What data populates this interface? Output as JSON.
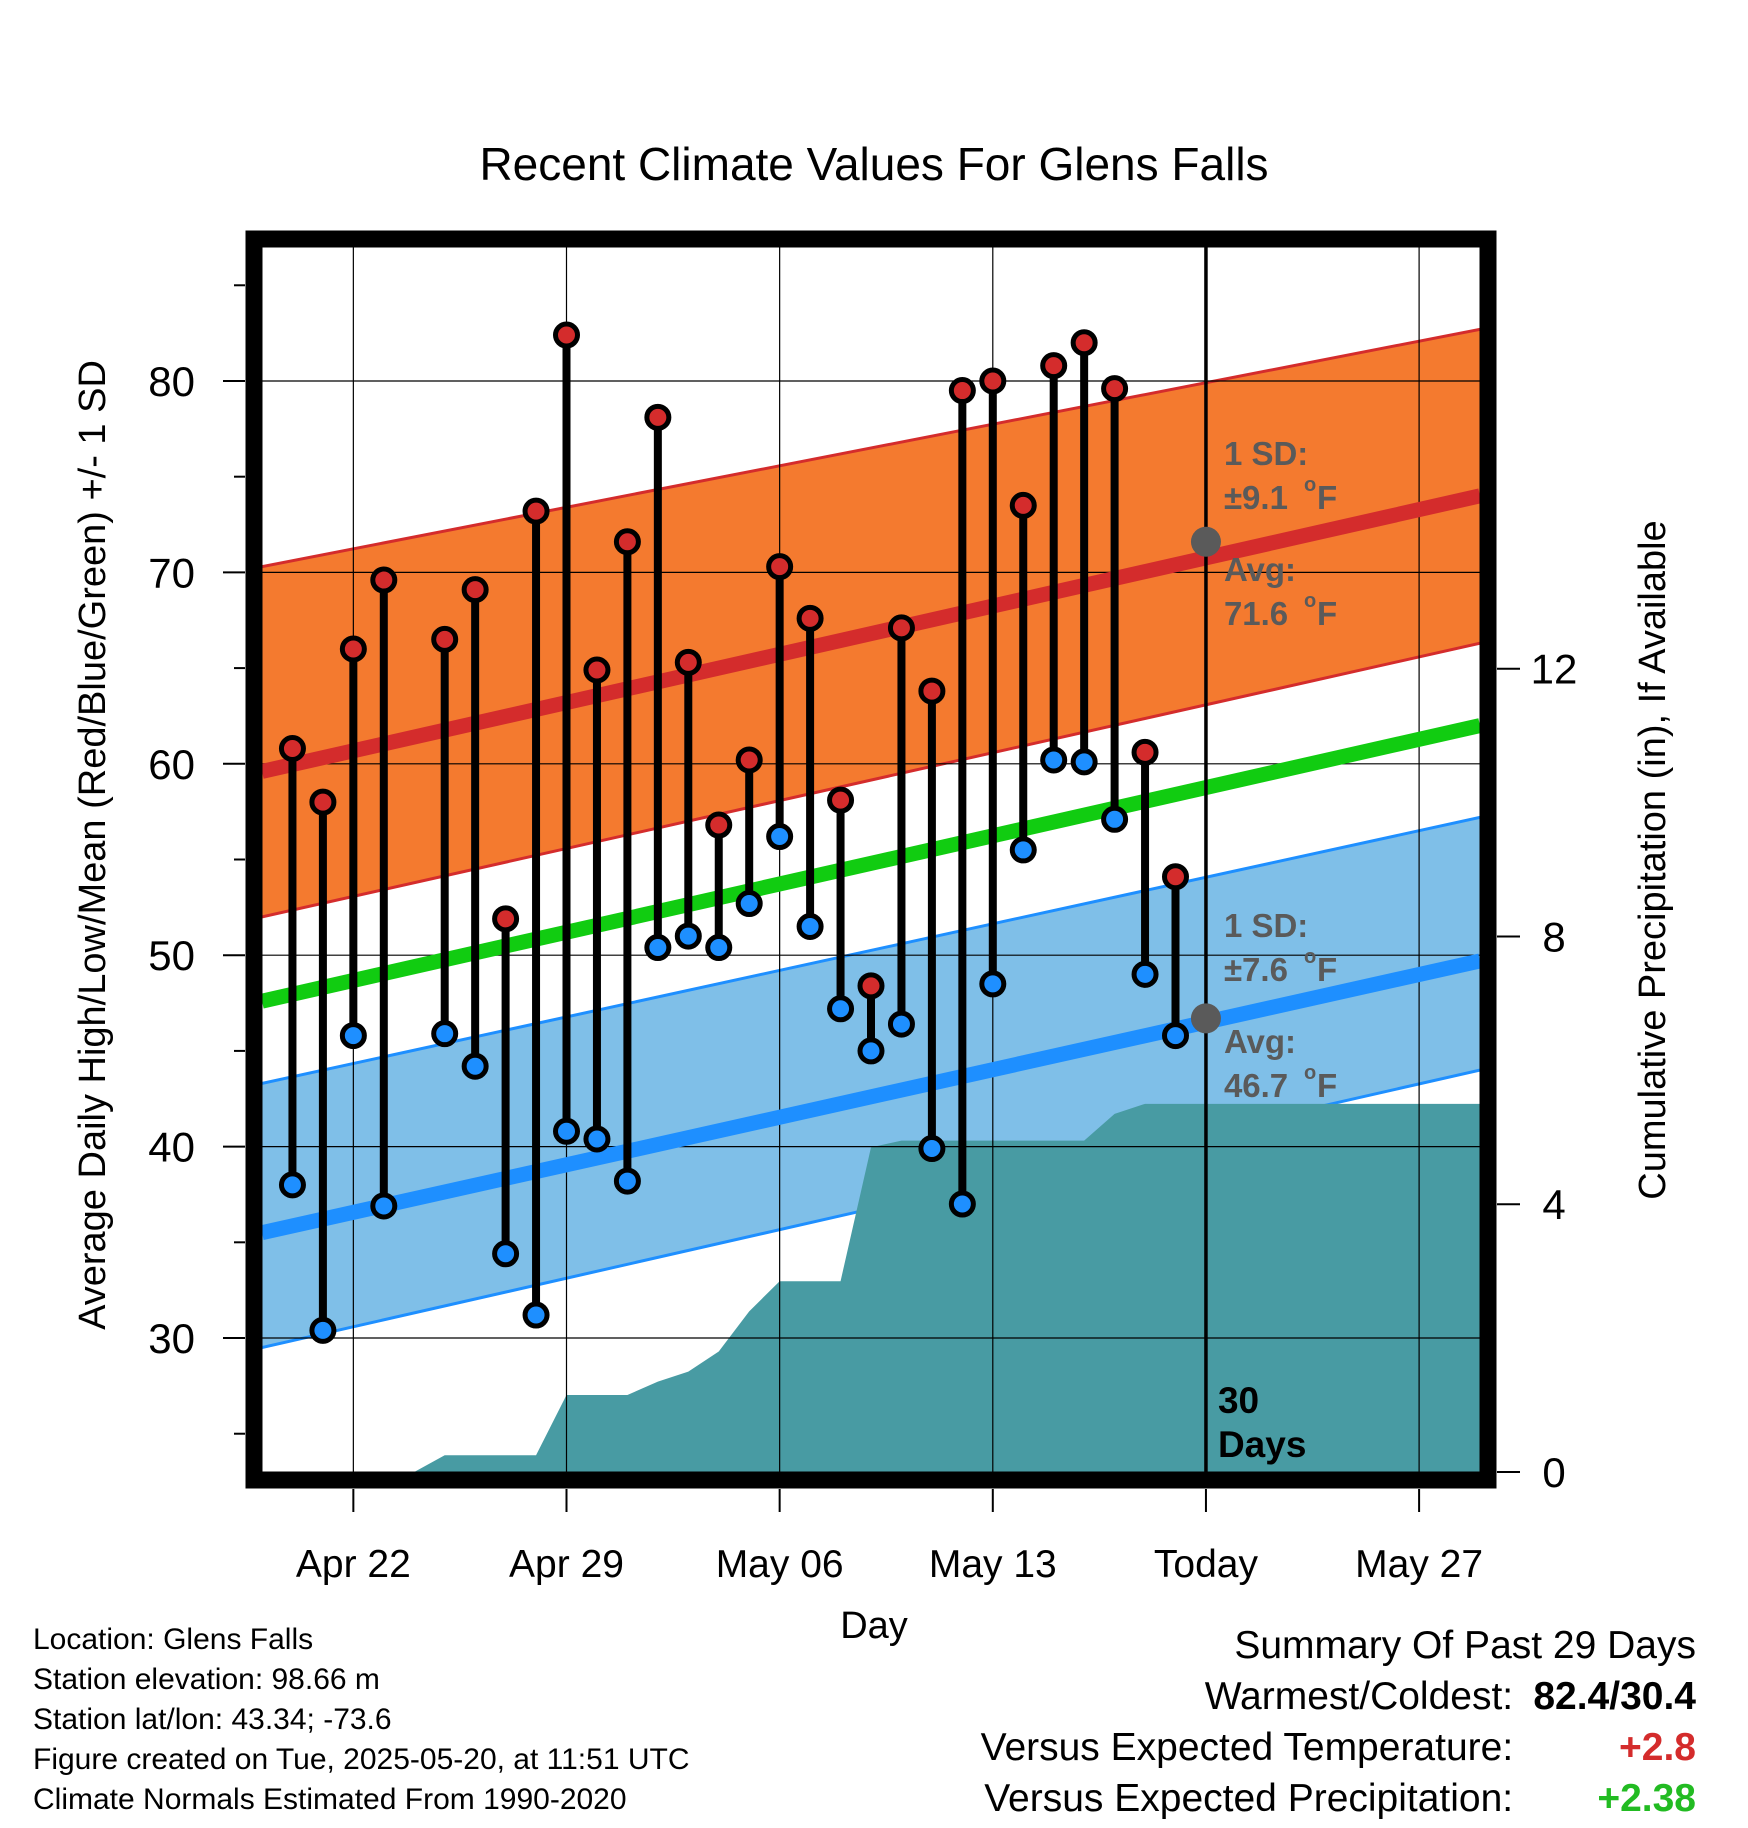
{
  "chart_data": {
    "type": "line",
    "title": "Recent Climate Values For Glens Falls",
    "xlabel": "Day",
    "ylabel": "Average Daily High/Low/Mean (Red/Blue/Green) +/- 1 SD",
    "y2label": "Cumulative Precipitation (in), If Available",
    "x_tick_labels": [
      "Apr 22",
      "Apr 29",
      "May 06",
      "May 13",
      "Today",
      "May 27"
    ],
    "x_tick_dates": [
      "2025-04-22",
      "2025-04-29",
      "2025-05-06",
      "2025-05-13",
      "2025-05-20",
      "2025-05-27"
    ],
    "xlim": [
      "2025-04-19",
      "2025-05-29"
    ],
    "ylim": [
      23,
      87
    ],
    "y_ticks": [
      30,
      40,
      50,
      60,
      70,
      80
    ],
    "y2lim": [
      0,
      18.3
    ],
    "y2_ticks": [
      0,
      4,
      8,
      12
    ],
    "grid": true,
    "normals": {
      "dates": [
        "2025-04-19",
        "2025-05-29"
      ],
      "high_avg": [
        59.6,
        74.0
      ],
      "high_upper": [
        70.3,
        82.7
      ],
      "high_lower": [
        52.0,
        66.3
      ],
      "mean": [
        47.6,
        62.0
      ],
      "low_avg": [
        35.5,
        49.7
      ],
      "low_upper": [
        43.3,
        57.2
      ],
      "low_lower": [
        29.5,
        44.0
      ]
    },
    "series": [
      {
        "kind": "daily_high",
        "dates": [
          "2025-04-20",
          "2025-04-21",
          "2025-04-22",
          "2025-04-23",
          "2025-04-25",
          "2025-04-26",
          "2025-04-27",
          "2025-04-28",
          "2025-04-29",
          "2025-04-30",
          "2025-05-01",
          "2025-05-02",
          "2025-05-03",
          "2025-05-04",
          "2025-05-05",
          "2025-05-06",
          "2025-05-07",
          "2025-05-08",
          "2025-05-09",
          "2025-05-10",
          "2025-05-11",
          "2025-05-12",
          "2025-05-13",
          "2025-05-14",
          "2025-05-15",
          "2025-05-16",
          "2025-05-17",
          "2025-05-18",
          "2025-05-19"
        ],
        "values": [
          60.8,
          58.0,
          66.0,
          69.6,
          66.5,
          69.1,
          51.9,
          73.2,
          82.4,
          64.9,
          71.6,
          78.1,
          65.3,
          56.8,
          60.2,
          70.3,
          67.6,
          58.1,
          48.4,
          67.1,
          63.8,
          79.5,
          80.0,
          73.5,
          80.8,
          82.0,
          79.6,
          60.6,
          54.1
        ]
      },
      {
        "kind": "daily_low",
        "dates": [
          "2025-04-20",
          "2025-04-21",
          "2025-04-22",
          "2025-04-23",
          "2025-04-25",
          "2025-04-26",
          "2025-04-27",
          "2025-04-28",
          "2025-04-29",
          "2025-04-30",
          "2025-05-01",
          "2025-05-02",
          "2025-05-03",
          "2025-05-04",
          "2025-05-05",
          "2025-05-06",
          "2025-05-07",
          "2025-05-08",
          "2025-05-09",
          "2025-05-10",
          "2025-05-11",
          "2025-05-12",
          "2025-05-13",
          "2025-05-14",
          "2025-05-15",
          "2025-05-16",
          "2025-05-17",
          "2025-05-18",
          "2025-05-19"
        ],
        "values": [
          38.0,
          30.4,
          45.8,
          36.9,
          45.9,
          44.2,
          34.4,
          31.2,
          40.8,
          40.4,
          38.2,
          50.4,
          51.0,
          50.4,
          52.7,
          56.2,
          51.5,
          47.2,
          45.0,
          46.4,
          39.9,
          37.0,
          48.5,
          55.5,
          60.2,
          60.1,
          57.1,
          49.0,
          45.8
        ]
      },
      {
        "kind": "cumulative_precip",
        "dates": [
          "2025-04-24",
          "2025-04-25",
          "2025-04-27",
          "2025-04-28",
          "2025-04-29",
          "2025-05-01",
          "2025-05-02",
          "2025-05-03",
          "2025-05-04",
          "2025-05-05",
          "2025-05-06",
          "2025-05-08",
          "2025-05-09",
          "2025-05-10",
          "2025-05-16",
          "2025-05-17",
          "2025-05-18",
          "2025-05-29"
        ],
        "values": [
          0.0,
          0.25,
          0.25,
          0.25,
          1.15,
          1.15,
          1.35,
          1.5,
          1.8,
          2.4,
          2.85,
          2.85,
          4.85,
          4.95,
          4.95,
          5.35,
          5.5,
          5.5
        ]
      }
    ],
    "annotations": {
      "high_sd_label": "1 SD:",
      "high_sd_value": "±9.1",
      "high_avg_label": "Avg:",
      "high_avg_value": "71.6",
      "low_sd_label": "1 SD:",
      "low_sd_value": "±7.6",
      "low_avg_label": "Avg:",
      "low_avg_value": "46.7",
      "unit_sup": "o",
      "unit_letter": "F",
      "today_high_avg": 71.6,
      "today_low_avg": 46.7,
      "days_line1": "30",
      "days_line2": "Days"
    },
    "colors": {
      "high_band": "#f47a2f",
      "high_line": "#d42c2c",
      "mean_line": "#11cc11",
      "low_band": "#7fbfe8",
      "low_line": "#1e8fff",
      "precip": "#489ba3",
      "high_dot": "#d42c2c",
      "low_dot": "#1e8fff",
      "annotation": "#5a5a5a"
    }
  },
  "info": {
    "location": "Location: Glens Falls",
    "elevation": "Station elevation: 98.66 m",
    "latlon": "Station lat/lon: 43.34; -73.6",
    "created": "Figure created on Tue, 2025-05-20, at 11:51 UTC",
    "normals": "Climate Normals Estimated From 1990-2020"
  },
  "summary": {
    "title": "Summary Of Past 29 Days",
    "warm_label": "Warmest/Coldest:",
    "warm_value": "82.4/30.4",
    "temp_label": "Versus Expected Temperature:",
    "temp_value": "+2.8",
    "precip_label": "Versus Expected Precipitation:",
    "precip_value": "+2.38"
  }
}
